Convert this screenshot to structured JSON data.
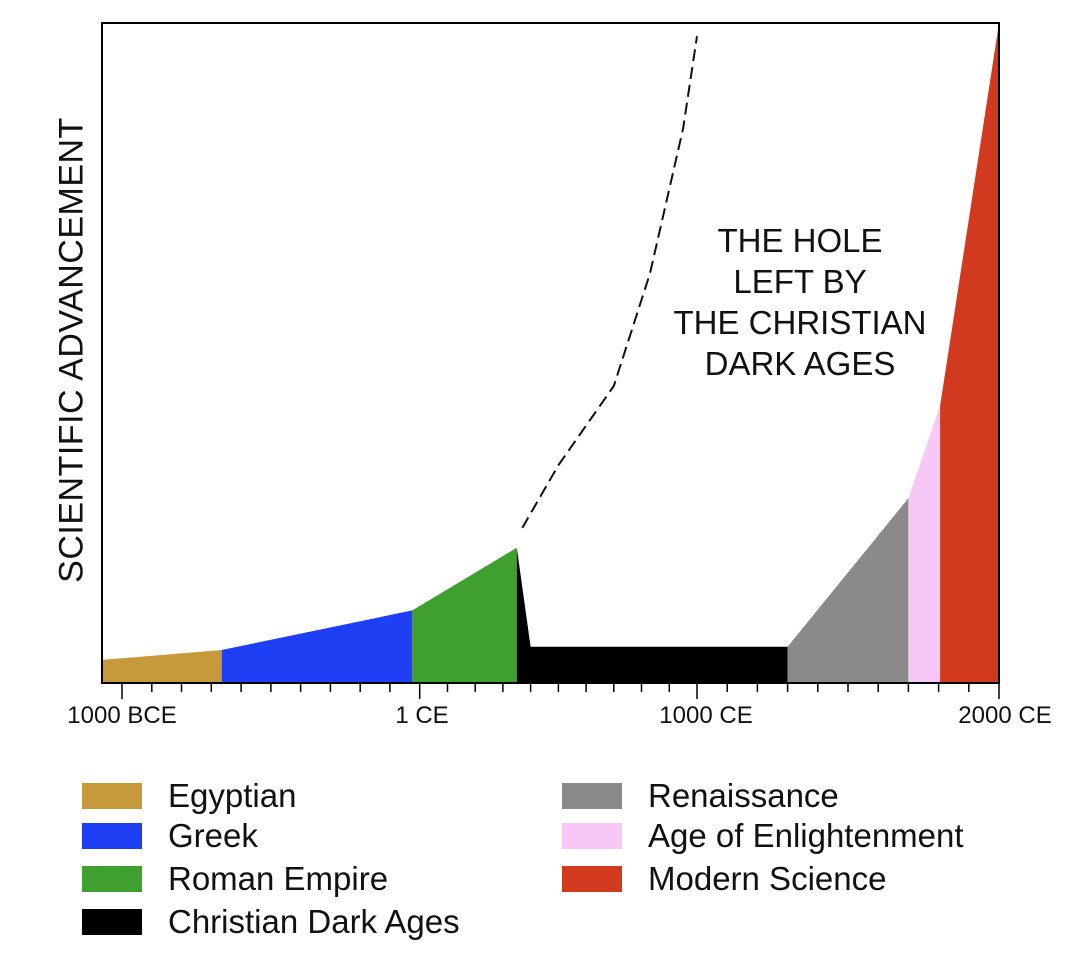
{
  "chart_data": {
    "type": "area",
    "title": "",
    "ylabel": "SCIENTIFIC ADVANCEMENT",
    "xlabel": "",
    "x_tick_labels": [
      "1000 BCE",
      "1 CE",
      "1000 CE",
      "2000 CE"
    ],
    "x_ticks": [
      -1000,
      1,
      1000,
      2000
    ],
    "xlim": [
      -1065,
      2000
    ],
    "ylim": [
      0,
      100
    ],
    "grid": false,
    "legend_placement": "bottom",
    "series": [
      {
        "name": "Egyptian",
        "color": "#c69a3a",
        "x": [
          -1065,
          -665
        ],
        "y": [
          3.5,
          5.0
        ]
      },
      {
        "name": "Greek",
        "color": "#1f3ff5",
        "x": [
          -665,
          -25
        ],
        "y": [
          5.0,
          11.0
        ]
      },
      {
        "name": "Roman Empire",
        "color": "#3f9f2f",
        "x": [
          -25,
          350
        ],
        "y": [
          11.0,
          20.5
        ]
      },
      {
        "name": "Christian Dark Ages",
        "color": "#000000",
        "x": [
          350,
          400,
          1300
        ],
        "y": [
          20.5,
          5.5,
          5.5
        ]
      },
      {
        "name": "Renaissance",
        "color": "#8a8a8a",
        "x": [
          1300,
          1700
        ],
        "y": [
          5.5,
          28.0
        ]
      },
      {
        "name": "Age of Enlightenment",
        "color": "#f7c8f5",
        "x": [
          1700,
          1805
        ],
        "y": [
          28.0,
          42.0
        ]
      },
      {
        "name": "Modern Science",
        "color": "#d23a20",
        "x": [
          1805,
          2000
        ],
        "y": [
          42.0,
          100
        ]
      }
    ],
    "projection_line": {
      "style": "dashed",
      "x": [
        370,
        500,
        700,
        830,
        950,
        1000
      ],
      "y": [
        23.5,
        33.0,
        45.0,
        62.0,
        84.0,
        98.0
      ]
    },
    "annotation": [
      "THE HOLE",
      "LEFT BY",
      "THE CHRISTIAN",
      "DARK AGES"
    ]
  },
  "legend": [
    {
      "label": "Egyptian",
      "color": "#c69a3a"
    },
    {
      "label": "Greek",
      "color": "#1f3ff5"
    },
    {
      "label": "Roman Empire",
      "color": "#3f9f2f"
    },
    {
      "label": "Christian Dark Ages",
      "color": "#000000"
    },
    {
      "label": "Renaissance",
      "color": "#8a8a8a"
    },
    {
      "label": "Age of Enlightenment",
      "color": "#f7c8f5"
    },
    {
      "label": "Modern Science",
      "color": "#d23a20"
    }
  ]
}
